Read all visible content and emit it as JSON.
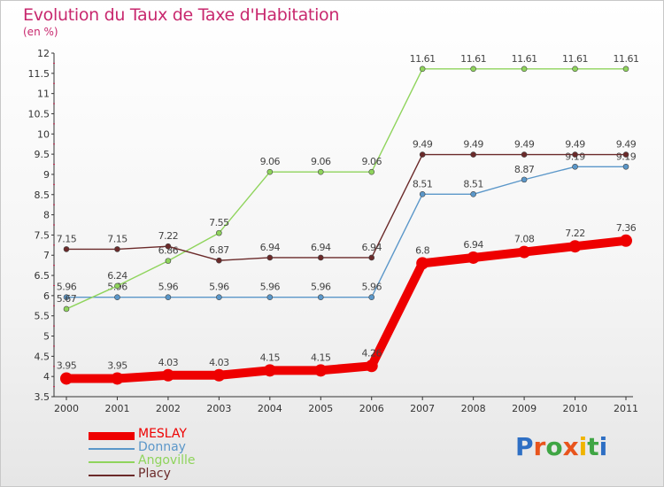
{
  "title": "Evolution du Taux de Taxe d'Habitation",
  "unit_label": "(en %)",
  "logo": {
    "text": "Proxiti",
    "letter_colors": [
      "#2e6fc4",
      "#e8541c",
      "#3fa544",
      "#e8541c",
      "#f0b400",
      "#3fa544",
      "#2e6fc4"
    ]
  },
  "chart_data": {
    "type": "line",
    "x": [
      "2000",
      "2001",
      "2002",
      "2003",
      "2004",
      "2005",
      "2006",
      "2007",
      "2008",
      "2009",
      "2010",
      "2011"
    ],
    "ylim": [
      3.5,
      12
    ],
    "yticks": [
      "3.5",
      "4",
      "4.5",
      "5",
      "5.5",
      "6",
      "6.5",
      "7",
      "7.5",
      "8",
      "8.5",
      "9",
      "9.5",
      "10",
      "10.5",
      "11",
      "11.5",
      "12"
    ],
    "grid": false,
    "legend_position": "bottom-left",
    "series": [
      {
        "name": "MESLAY",
        "color": "#ee0000",
        "emphasis": true,
        "values": [
          3.95,
          3.95,
          4.03,
          4.03,
          4.15,
          4.15,
          4.26,
          6.8,
          6.94,
          7.08,
          7.22,
          7.36
        ],
        "labels": [
          "3.95",
          "3.95",
          "4.03",
          "4.03",
          "4.15",
          "4.15",
          "4.26",
          "6.8",
          "6.94",
          "7.08",
          "7.22",
          "7.36"
        ]
      },
      {
        "name": "Donnay",
        "color": "#5b97c9",
        "emphasis": false,
        "values": [
          5.96,
          5.96,
          5.96,
          5.96,
          5.96,
          5.96,
          5.96,
          8.51,
          8.51,
          8.87,
          9.19,
          9.19
        ],
        "labels": [
          "5.96",
          "5.96",
          "5.96",
          "5.96",
          "5.96",
          "5.96",
          "5.96",
          "8.51",
          "8.51",
          "8.87",
          "9.19",
          "9.19"
        ]
      },
      {
        "name": "Angoville",
        "color": "#8fd45c",
        "emphasis": false,
        "values": [
          5.67,
          6.24,
          6.86,
          7.55,
          9.06,
          9.06,
          9.06,
          11.61,
          11.61,
          11.61,
          11.61,
          11.61
        ],
        "labels": [
          "5.67",
          "6.24",
          "6.86",
          "7.55",
          "9.06",
          "9.06",
          "9.06",
          "11.61",
          "11.61",
          "11.61",
          "11.61",
          "11.61"
        ]
      },
      {
        "name": "Placy",
        "color": "#6b2a2a",
        "emphasis": false,
        "values": [
          7.15,
          7.15,
          7.22,
          6.87,
          6.94,
          6.94,
          6.94,
          9.49,
          9.49,
          9.49,
          9.49,
          9.49
        ],
        "labels": [
          "7.15",
          "7.15",
          "7.22",
          "6.87",
          "6.94",
          "6.94",
          "6.94",
          "9.49",
          "9.49",
          "9.49",
          "9.49",
          "9.49"
        ]
      }
    ]
  }
}
